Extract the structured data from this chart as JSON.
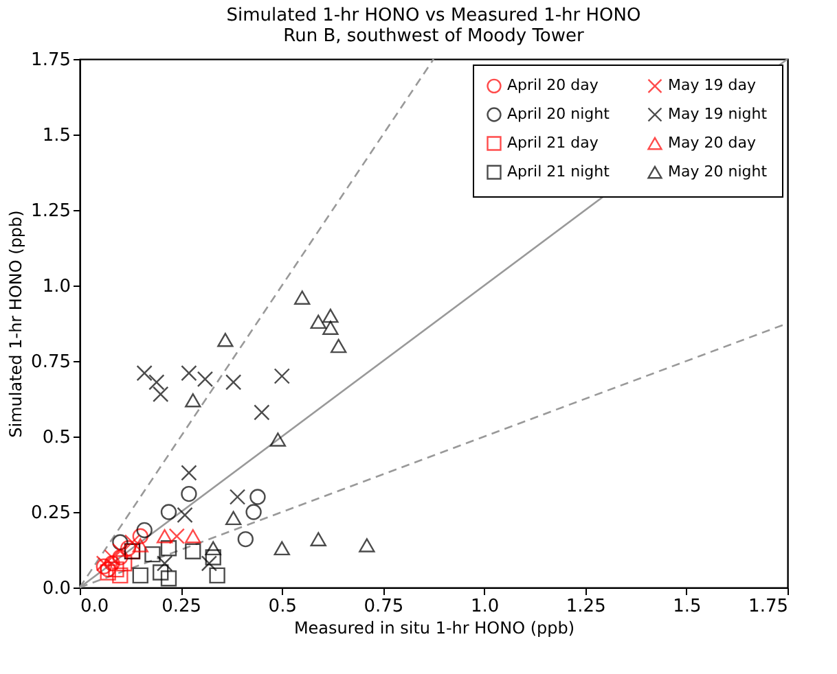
{
  "chart_data": {
    "type": "scatter",
    "title": "Simulated 1-hr HONO vs Measured 1-hr HONO",
    "subtitle": "Run B, southwest of Moody Tower",
    "xlabel": "Measured in situ 1-hr HONO (ppb)",
    "ylabel": "Simulated 1-hr HONO (ppb)",
    "xlim": [
      0,
      1.75
    ],
    "ylim": [
      0,
      1.75
    ],
    "xticks": [
      {
        "value": 0,
        "label": "0.0"
      },
      0.25,
      {
        "value": 0.5,
        "label": "0.5"
      },
      0.75,
      {
        "value": 1,
        "label": "1.0"
      },
      1.25,
      {
        "value": 1.5,
        "label": "1.5"
      },
      1.75
    ],
    "yticks": [
      {
        "value": 0,
        "label": "0.0"
      },
      0.25,
      {
        "value": 0.5,
        "label": "0.5"
      },
      0.75,
      {
        "value": 1,
        "label": "1.0"
      },
      1.25,
      {
        "value": 1.5,
        "label": "1.5"
      },
      1.75
    ],
    "grid": false,
    "legend": "top right",
    "series": [
      {
        "name": "April 20 day",
        "color": "#ff0000",
        "marker": "circle",
        "x": [
          0.06,
          0.07,
          0.08,
          0.1,
          0.12,
          0.15
        ],
        "values": [
          0.07,
          0.06,
          0.08,
          0.1,
          0.13,
          0.17
        ]
      },
      {
        "name": "April 20 night",
        "color": "#000000",
        "marker": "circle",
        "x": [
          0.27,
          0.22,
          0.44,
          0.43,
          0.41,
          0.16,
          0.1
        ],
        "values": [
          0.31,
          0.25,
          0.3,
          0.25,
          0.16,
          0.19,
          0.15
        ]
      },
      {
        "name": "April 21 day",
        "color": "#ff0000",
        "marker": "square",
        "x": [
          0.07,
          0.09,
          0.11,
          0.13,
          0.1
        ],
        "values": [
          0.05,
          0.06,
          0.08,
          0.12,
          0.04
        ]
      },
      {
        "name": "April 21 night",
        "color": "#000000",
        "marker": "square",
        "x": [
          0.22,
          0.28,
          0.15,
          0.2,
          0.22,
          0.33,
          0.34,
          0.18,
          0.13
        ],
        "values": [
          0.13,
          0.12,
          0.04,
          0.05,
          0.03,
          0.1,
          0.04,
          0.11,
          0.12
        ]
      },
      {
        "name": "May 19 day",
        "color": "#ff0000",
        "marker": "cross",
        "x": [
          0.06,
          0.08,
          0.1,
          0.13,
          0.24
        ],
        "values": [
          0.08,
          0.1,
          0.12,
          0.15,
          0.17
        ]
      },
      {
        "name": "May 19 night",
        "color": "#000000",
        "marker": "cross",
        "x": [
          0.16,
          0.19,
          0.2,
          0.27,
          0.31,
          0.38,
          0.5,
          0.45,
          0.27,
          0.39,
          0.26,
          0.32,
          0.21
        ],
        "values": [
          0.71,
          0.68,
          0.64,
          0.71,
          0.69,
          0.68,
          0.7,
          0.58,
          0.38,
          0.3,
          0.24,
          0.08,
          0.08
        ]
      },
      {
        "name": "May 20 day",
        "color": "#ff0000",
        "marker": "triangle",
        "x": [
          0.15,
          0.21,
          0.28
        ],
        "values": [
          0.14,
          0.17,
          0.17
        ]
      },
      {
        "name": "May 20 night",
        "color": "#000000",
        "marker": "triangle",
        "x": [
          0.55,
          0.59,
          0.62,
          0.62,
          0.64,
          0.36,
          0.28,
          0.49,
          0.38,
          0.33,
          0.5,
          0.59,
          0.71
        ],
        "values": [
          0.96,
          0.88,
          0.9,
          0.86,
          0.8,
          0.82,
          0.62,
          0.49,
          0.23,
          0.13,
          0.13,
          0.16,
          0.14
        ]
      },
      {
        "type": "line",
        "color": "#999999",
        "line_style": "solid",
        "x": [
          0,
          1.75
        ],
        "values": [
          0,
          1.75
        ]
      },
      {
        "type": "line",
        "color": "#999999",
        "line_style": "dashed",
        "x": [
          0,
          0.875
        ],
        "values": [
          0,
          1.75
        ]
      },
      {
        "type": "line",
        "color": "#999999",
        "line_style": "dashed",
        "x": [
          0,
          1.75
        ],
        "values": [
          0,
          0.875
        ]
      }
    ]
  }
}
